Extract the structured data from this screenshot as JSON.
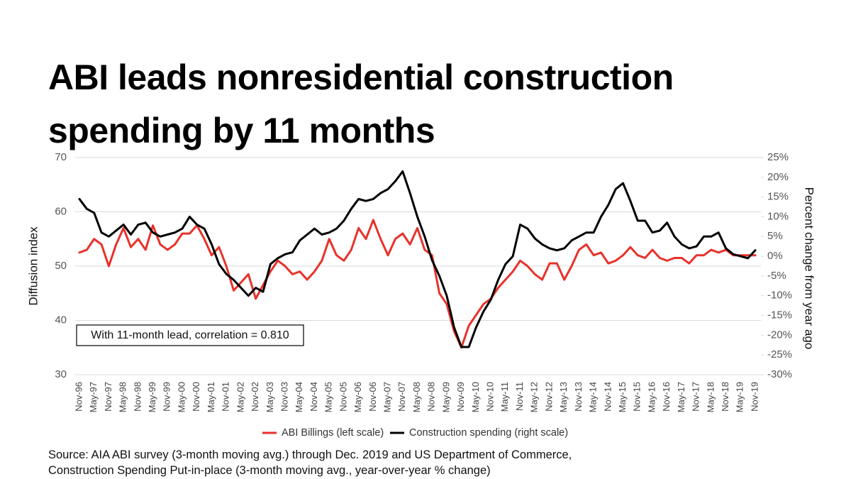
{
  "chart_data": {
    "type": "line",
    "title": [
      "ABI leads nonresidential construction",
      "spending by 11 months"
    ],
    "ylabel": "Diffusion index",
    "y2label": "Percent change from year ago",
    "annotation": "With 11-month lead, correlation = 0.810",
    "source": [
      "Source: AIA ABI survey (3-month moving avg.) through Dec. 2019 and US Department of Commerce,",
      "Construction Spending Put-in-place (3-month moving avg., year-over-year % change)"
    ],
    "categories": [
      "Nov-96",
      null,
      "May-97",
      null,
      "Nov-97",
      null,
      "May-98",
      null,
      "Nov-98",
      null,
      "May-99",
      null,
      "Nov-99",
      null,
      "May-00",
      null,
      "Nov-00",
      null,
      "May-01",
      null,
      "Nov-01",
      null,
      "May-02",
      null,
      "Nov-02",
      null,
      "May-03",
      null,
      "Nov-03",
      null,
      "May-04",
      null,
      "Nov-04",
      null,
      "May-05",
      null,
      "Nov-05",
      null,
      "May-06",
      null,
      "Nov-06",
      null,
      "May-07",
      null,
      "Nov-07",
      null,
      "May-08",
      null,
      "Nov-08",
      null,
      "May-09",
      null,
      "Nov-09",
      null,
      "May-10",
      null,
      "Nov-10",
      null,
      "May-11",
      null,
      "Nov-11",
      null,
      "May-12",
      null,
      "Nov-12",
      null,
      "May-13",
      null,
      "Nov-13",
      null,
      "May-14",
      null,
      "Nov-14",
      null,
      "May-15",
      null,
      "Nov-15",
      null,
      "May-16",
      null,
      "Nov-16",
      null,
      "May-17",
      null,
      "Nov-17",
      null,
      "May-18",
      null,
      "Nov-18",
      null,
      "May-19",
      null,
      "Nov-19"
    ],
    "series": [
      {
        "name": "ABI Billings (left scale)",
        "color": "#e8322b",
        "axis": "y",
        "values": [
          52.5,
          53,
          55,
          54,
          50,
          54,
          57,
          53.5,
          55,
          53,
          57.5,
          54,
          53,
          54,
          56,
          56,
          57.5,
          55,
          52,
          53.5,
          50,
          45.5,
          47,
          48.5,
          44,
          46.5,
          49,
          51,
          50,
          48.5,
          49,
          47.5,
          49,
          51,
          55,
          52,
          51,
          53,
          57,
          55,
          58.5,
          55,
          52,
          55,
          56,
          54,
          57,
          53,
          52,
          45,
          43,
          38,
          35,
          39,
          41,
          43,
          44,
          46,
          47.5,
          49,
          51,
          50,
          48.5,
          47.5,
          50.5,
          50.5,
          47.5,
          50,
          53,
          54,
          52,
          52.5,
          50.5,
          51,
          52,
          53.5,
          52,
          51.5,
          53,
          51.5,
          51,
          51.5,
          51.5,
          50.5,
          52,
          52,
          53,
          52.5,
          53,
          52,
          52,
          52,
          52
        ]
      },
      {
        "name": "Construction spending (right scale)",
        "color": "#000000",
        "axis": "y2",
        "values": [
          14.5,
          12,
          11,
          6,
          5,
          6.5,
          8,
          5.5,
          8,
          8.5,
          6,
          5,
          5.5,
          6,
          7,
          10,
          8,
          7,
          3,
          -2,
          -4.5,
          -6,
          -8,
          -10,
          -8,
          -9,
          -2,
          -0.5,
          0.5,
          1,
          4,
          5.5,
          7,
          5.5,
          6,
          7,
          9,
          12,
          14.5,
          14,
          14.5,
          16,
          17,
          19,
          21.5,
          16,
          10,
          5,
          -1,
          -5,
          -10,
          -18,
          -23,
          -23,
          -18,
          -14,
          -11,
          -6,
          -2,
          0,
          8,
          7,
          4.5,
          3,
          2,
          1.5,
          2,
          4,
          5,
          6,
          6,
          10,
          13,
          17,
          18.5,
          14,
          9,
          9,
          6,
          6.5,
          8.5,
          5,
          3,
          2,
          2.5,
          5,
          5,
          6,
          2,
          0.5,
          0,
          -0.5,
          1.5
        ]
      }
    ],
    "ylim": [
      30,
      70
    ],
    "yticks": [
      30,
      40,
      50,
      60,
      70
    ],
    "y2lim": [
      -30,
      25
    ],
    "y2ticks": [
      {
        "value": -30,
        "label": "-30%"
      },
      {
        "value": -25,
        "label": "-25%"
      },
      {
        "value": -20,
        "label": "-20%"
      },
      {
        "value": -15,
        "label": "-15%"
      },
      {
        "value": -10,
        "label": "-10%"
      },
      {
        "value": -5,
        "label": "-5%"
      },
      {
        "value": 0,
        "label": "0%"
      },
      {
        "value": 5,
        "label": "5%"
      },
      {
        "value": 10,
        "label": "10%"
      },
      {
        "value": 15,
        "label": "15%"
      },
      {
        "value": 20,
        "label": "20%"
      },
      {
        "value": 25,
        "label": "25%"
      }
    ],
    "grid": true,
    "legend": "bottom"
  }
}
